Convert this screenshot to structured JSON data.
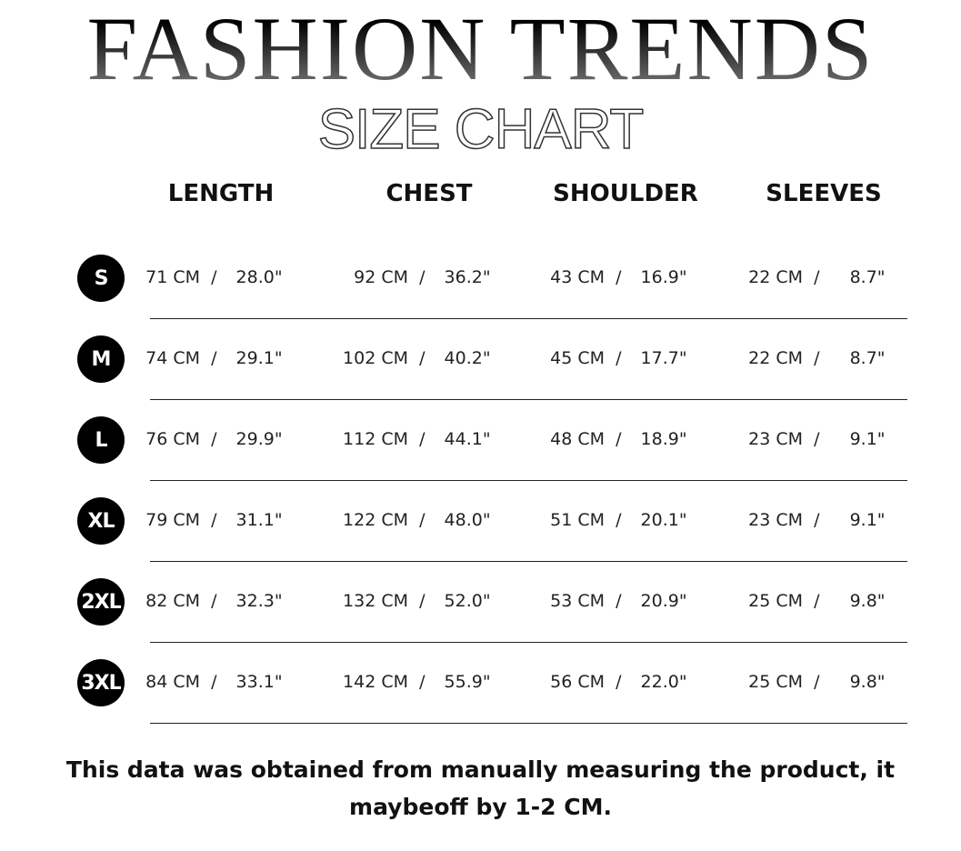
{
  "title": "FASHION TRENDS",
  "subtitle": "SIZE CHART",
  "columns": [
    "LENGTH",
    "CHEST",
    "SHOULDER",
    "SLEEVES"
  ],
  "rows": [
    {
      "size": "S",
      "cells": [
        [
          "71 CM",
          "28.0\""
        ],
        [
          "92 CM",
          "36.2\""
        ],
        [
          "43 CM",
          "16.9\""
        ],
        [
          "22 CM",
          "8.7\""
        ]
      ]
    },
    {
      "size": "M",
      "cells": [
        [
          "74 CM",
          "29.1\""
        ],
        [
          "102 CM",
          "40.2\""
        ],
        [
          "45 CM",
          "17.7\""
        ],
        [
          "22 CM",
          "8.7\""
        ]
      ]
    },
    {
      "size": "L",
      "cells": [
        [
          "76 CM",
          "29.9\""
        ],
        [
          "112 CM",
          "44.1\""
        ],
        [
          "48 CM",
          "18.9\""
        ],
        [
          "23 CM",
          "9.1\""
        ]
      ]
    },
    {
      "size": "XL",
      "cells": [
        [
          "79 CM",
          "31.1\""
        ],
        [
          "122 CM",
          "48.0\""
        ],
        [
          "51 CM",
          "20.1\""
        ],
        [
          "23 CM",
          "9.1\""
        ]
      ]
    },
    {
      "size": "2XL",
      "cells": [
        [
          "82 CM",
          "32.3\""
        ],
        [
          "132 CM",
          "52.0\""
        ],
        [
          "53 CM",
          "20.9\""
        ],
        [
          "25 CM",
          "9.8\""
        ]
      ]
    },
    {
      "size": "3XL",
      "cells": [
        [
          "84 CM",
          "33.1\""
        ],
        [
          "142 CM",
          "55.9\""
        ],
        [
          "56 CM",
          "22.0\""
        ],
        [
          "25 CM",
          "9.8\""
        ]
      ]
    }
  ],
  "note": "This data was obtained from manually measuring the product, it maybeoff by 1-2 CM."
}
